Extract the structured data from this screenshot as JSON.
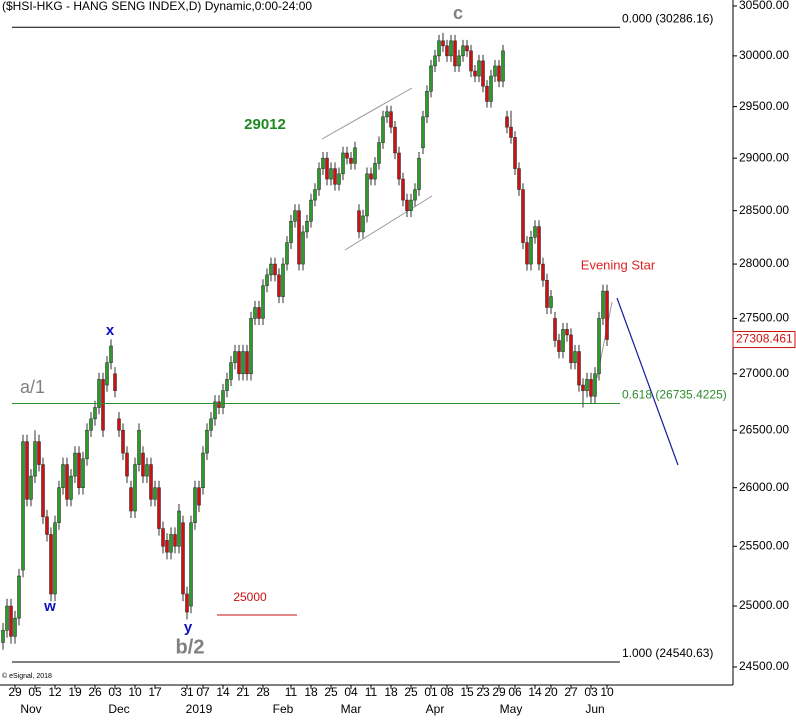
{
  "chart_data": {
    "type": "candlestick",
    "title": "($HSI-HKG - HANG SENG INDEX,D) Dynamic,0:00-24:00",
    "credit": "© eSignal, 2018",
    "log_scale": true,
    "up_color": "#2e9a2e",
    "down_color": "#cc1111",
    "ylim": [
      24500,
      30500
    ],
    "yticks": [
      {
        "value": 24500,
        "label": "24500.00"
      },
      {
        "value": 25000,
        "label": "25000.00"
      },
      {
        "value": 25500,
        "label": "25500.00"
      },
      {
        "value": 26000,
        "label": "26000.00"
      },
      {
        "value": 26500,
        "label": "26500.00"
      },
      {
        "value": 27000,
        "label": "27000.00"
      },
      {
        "value": 27500,
        "label": "27500.00"
      },
      {
        "value": 28000,
        "label": "28000.00"
      },
      {
        "value": 28500,
        "label": "28500.00"
      },
      {
        "value": 29000,
        "label": "29000.00"
      },
      {
        "value": 29500,
        "label": "29500.00"
      },
      {
        "value": 30000,
        "label": "30000.00"
      },
      {
        "value": 30500,
        "label": "30500.00"
      }
    ],
    "xlim": [
      -0.75,
      181.75
    ],
    "xticks": [
      {
        "value": 3,
        "label": "29"
      },
      {
        "value": 8,
        "label": "05"
      },
      {
        "value": 13,
        "label": "12"
      },
      {
        "value": 18,
        "label": "19"
      },
      {
        "value": 23,
        "label": "26"
      },
      {
        "value": 28,
        "label": "03"
      },
      {
        "value": 33,
        "label": "10"
      },
      {
        "value": 38,
        "label": "17"
      },
      {
        "value": 46,
        "label": "31"
      },
      {
        "value": 50,
        "label": "07"
      },
      {
        "value": 55,
        "label": "14"
      },
      {
        "value": 60,
        "label": "21"
      },
      {
        "value": 65,
        "label": "28"
      },
      {
        "value": 72,
        "label": "11"
      },
      {
        "value": 77,
        "label": "18"
      },
      {
        "value": 82,
        "label": "25"
      },
      {
        "value": 87,
        "label": "04"
      },
      {
        "value": 92,
        "label": "11"
      },
      {
        "value": 97,
        "label": "18"
      },
      {
        "value": 102,
        "label": "25"
      },
      {
        "value": 107,
        "label": "01"
      },
      {
        "value": 111,
        "label": "08"
      },
      {
        "value": 116,
        "label": "15"
      },
      {
        "value": 120,
        "label": "23"
      },
      {
        "value": 124,
        "label": "29"
      },
      {
        "value": 128,
        "label": "06"
      },
      {
        "value": 133,
        "label": "14"
      },
      {
        "value": 137,
        "label": "20"
      },
      {
        "value": 142,
        "label": "27"
      },
      {
        "value": 147,
        "label": "03"
      },
      {
        "value": 151,
        "label": "10"
      }
    ],
    "months": [
      {
        "value": 7,
        "label": "Nov"
      },
      {
        "value": 29,
        "label": "Dec"
      },
      {
        "value": 49,
        "label": "2019"
      },
      {
        "value": 70,
        "label": "Feb"
      },
      {
        "value": 87,
        "label": "Mar"
      },
      {
        "value": 108,
        "label": "Apr"
      },
      {
        "value": 127,
        "label": "May"
      },
      {
        "value": 148,
        "label": "Jun"
      }
    ],
    "levels": [
      {
        "value": 30286.16,
        "label": "0.000 (30286.16)",
        "color": "#000000"
      },
      {
        "value": 26735.4225,
        "label": "0.618 (26735.4225)",
        "color": "#2e8b2e"
      },
      {
        "value": 24540.63,
        "label": "1.000 (24540.63)",
        "color": "#000000"
      }
    ],
    "last_price": 27308.461,
    "annotations": {
      "c": "c",
      "a1": "a/1",
      "x": "x",
      "w": "w",
      "y": "y",
      "b2": "b/2",
      "target": "29012",
      "low": "25000",
      "pattern": "Evening Star"
    },
    "candles": [
      [
        24700,
        24860,
        24640,
        24800
      ],
      [
        24800,
        25060,
        24740,
        25000
      ],
      [
        25000,
        25060,
        24690,
        24750
      ],
      [
        24750,
        24960,
        24690,
        24900
      ],
      [
        24900,
        25310,
        24840,
        25250
      ],
      [
        25300,
        26460,
        25240,
        26400
      ],
      [
        26400,
        26460,
        25840,
        25900
      ],
      [
        25900,
        26160,
        25840,
        26100
      ],
      [
        26100,
        26500,
        26040,
        26400
      ],
      [
        26400,
        26460,
        26140,
        26200
      ],
      [
        26200,
        26260,
        25690,
        25750
      ],
      [
        25750,
        25810,
        25540,
        25600
      ],
      [
        25600,
        25660,
        25040,
        25100
      ],
      [
        25100,
        25760,
        25040,
        25700
      ],
      [
        25700,
        26060,
        25640,
        26000
      ],
      [
        26000,
        26260,
        25940,
        26200
      ],
      [
        26200,
        26260,
        25840,
        25900
      ],
      [
        25900,
        26160,
        25840,
        26100
      ],
      [
        26100,
        26360,
        26040,
        26300
      ],
      [
        26300,
        26360,
        25940,
        26000
      ],
      [
        26000,
        26310,
        25940,
        26250
      ],
      [
        26250,
        26560,
        26190,
        26500
      ],
      [
        26500,
        26660,
        26440,
        26600
      ],
      [
        26600,
        26760,
        26540,
        26700
      ],
      [
        26700,
        27010,
        26640,
        26950
      ],
      [
        26950,
        27010,
        26440,
        26500
      ],
      [
        26900,
        27160,
        26840,
        27100
      ],
      [
        27100,
        27310,
        27040,
        27250
      ],
      [
        27000,
        27060,
        26790,
        26850
      ],
      [
        26600,
        26660,
        26440,
        26500
      ],
      [
        26500,
        26560,
        26240,
        26300
      ],
      [
        26300,
        26360,
        26040,
        26100
      ],
      [
        26000,
        26060,
        25740,
        25800
      ],
      [
        25800,
        26260,
        25740,
        26200
      ],
      [
        26200,
        26560,
        26140,
        26500
      ],
      [
        26300,
        26360,
        26040,
        26100
      ],
      [
        26100,
        26260,
        26040,
        26200
      ],
      [
        26200,
        26260,
        25840,
        25900
      ],
      [
        25900,
        26060,
        25840,
        26000
      ],
      [
        26000,
        26060,
        25590,
        25650
      ],
      [
        25650,
        25710,
        25440,
        25500
      ],
      [
        25550,
        25610,
        25390,
        25450
      ],
      [
        25450,
        25660,
        25390,
        25600
      ],
      [
        25600,
        25660,
        25440,
        25500
      ],
      [
        25500,
        25860,
        25440,
        25800
      ],
      [
        25700,
        25760,
        25040,
        25100
      ],
      [
        25100,
        25160,
        24890,
        24950
      ],
      [
        25000,
        25760,
        24940,
        25700
      ],
      [
        25700,
        26060,
        25640,
        26000
      ],
      [
        26000,
        26060,
        25790,
        25850
      ],
      [
        26000,
        26360,
        25940,
        26300
      ],
      [
        26300,
        26560,
        26240,
        26500
      ],
      [
        26500,
        26660,
        26440,
        26600
      ],
      [
        26600,
        26810,
        26540,
        26750
      ],
      [
        26750,
        26810,
        26640,
        26700
      ],
      [
        26700,
        26910,
        26640,
        26850
      ],
      [
        26850,
        27010,
        26790,
        26950
      ],
      [
        26950,
        27160,
        26890,
        27100
      ],
      [
        27100,
        27260,
        27040,
        27200
      ],
      [
        27200,
        27260,
        26940,
        27000
      ],
      [
        27000,
        27260,
        26940,
        27200
      ],
      [
        27200,
        27260,
        26940,
        27000
      ],
      [
        27000,
        27560,
        26940,
        27500
      ],
      [
        27500,
        27660,
        27440,
        27600
      ],
      [
        27600,
        27660,
        27440,
        27500
      ],
      [
        27500,
        27860,
        27440,
        27800
      ],
      [
        27800,
        27960,
        27740,
        27900
      ],
      [
        27900,
        28060,
        27840,
        28000
      ],
      [
        28000,
        28060,
        27840,
        27900
      ],
      [
        27900,
        27960,
        27640,
        27700
      ],
      [
        27700,
        28060,
        27640,
        28000
      ],
      [
        28000,
        28260,
        27940,
        28200
      ],
      [
        28200,
        28460,
        28140,
        28400
      ],
      [
        28400,
        28560,
        28340,
        28500
      ],
      [
        28500,
        28560,
        27940,
        28000
      ],
      [
        28000,
        28360,
        27940,
        28300
      ],
      [
        28300,
        28460,
        28240,
        28400
      ],
      [
        28400,
        28660,
        28340,
        28600
      ],
      [
        28600,
        28760,
        28540,
        28700
      ],
      [
        28700,
        28960,
        28640,
        28900
      ],
      [
        28900,
        29060,
        28840,
        29000
      ],
      [
        29000,
        29060,
        28740,
        28800
      ],
      [
        28800,
        28960,
        28740,
        28900
      ],
      [
        28900,
        28960,
        28690,
        28750
      ],
      [
        28750,
        28910,
        28690,
        28850
      ],
      [
        28850,
        29110,
        28790,
        29050
      ],
      [
        29050,
        29110,
        28940,
        29000
      ],
      [
        29000,
        29060,
        28890,
        28950
      ],
      [
        28950,
        29160,
        28890,
        29100
      ],
      [
        28500,
        28560,
        28240,
        28300
      ],
      [
        28300,
        28510,
        28240,
        28450
      ],
      [
        28450,
        28910,
        28390,
        28850
      ],
      [
        28850,
        28910,
        28740,
        28800
      ],
      [
        28800,
        29010,
        28740,
        28950
      ],
      [
        28950,
        29210,
        28890,
        29150
      ],
      [
        29150,
        29460,
        29090,
        29400
      ],
      [
        29400,
        29510,
        29340,
        29450
      ],
      [
        29450,
        29510,
        29240,
        29300
      ],
      [
        29300,
        29360,
        28990,
        29050
      ],
      [
        29050,
        29110,
        28740,
        28800
      ],
      [
        28800,
        28860,
        28540,
        28600
      ],
      [
        28600,
        28660,
        28440,
        28500
      ],
      [
        28500,
        28660,
        28440,
        28600
      ],
      [
        28600,
        28760,
        28540,
        28700
      ],
      [
        28700,
        29060,
        28640,
        29000
      ],
      [
        29100,
        29460,
        29040,
        29400
      ],
      [
        29400,
        29710,
        29340,
        29650
      ],
      [
        29650,
        29960,
        29590,
        29900
      ],
      [
        29900,
        30060,
        29840,
        30000
      ],
      [
        30000,
        30210,
        29940,
        30150
      ],
      [
        30150,
        30230,
        30040,
        30100
      ],
      [
        30100,
        30160,
        29940,
        30000
      ],
      [
        30000,
        30210,
        29940,
        30150
      ],
      [
        30150,
        30210,
        29840,
        29900
      ],
      [
        29900,
        30060,
        29840,
        30000
      ],
      [
        30000,
        30160,
        29940,
        30100
      ],
      [
        30100,
        30160,
        29990,
        30050
      ],
      [
        30050,
        30110,
        29790,
        29850
      ],
      [
        29850,
        29910,
        29740,
        29800
      ],
      [
        29800,
        30010,
        29740,
        29950
      ],
      [
        29950,
        30010,
        29640,
        29700
      ],
      [
        29700,
        29760,
        29490,
        29550
      ],
      [
        29550,
        29860,
        29490,
        29800
      ],
      [
        29800,
        29960,
        29740,
        29900
      ],
      [
        29900,
        29960,
        29690,
        29750
      ],
      [
        29750,
        30110,
        29690,
        30050
      ],
      [
        29400,
        29460,
        29240,
        29300
      ],
      [
        29300,
        29460,
        29140,
        29200
      ],
      [
        29200,
        29260,
        28840,
        28900
      ],
      [
        28900,
        28960,
        28640,
        28700
      ],
      [
        28700,
        28760,
        28140,
        28200
      ],
      [
        28200,
        28260,
        27940,
        28000
      ],
      [
        28000,
        28310,
        27940,
        28250
      ],
      [
        28250,
        28410,
        28190,
        28350
      ],
      [
        28350,
        28410,
        27940,
        28000
      ],
      [
        28000,
        28060,
        27790,
        27850
      ],
      [
        27850,
        27910,
        27540,
        27600
      ],
      [
        27600,
        27760,
        27540,
        27700
      ],
      [
        27500,
        27560,
        27240,
        27300
      ],
      [
        27300,
        27360,
        27140,
        27200
      ],
      [
        27200,
        27460,
        27140,
        27400
      ],
      [
        27400,
        27460,
        27290,
        27350
      ],
      [
        27350,
        27410,
        27040,
        27100
      ],
      [
        27100,
        27260,
        27040,
        27200
      ],
      [
        27200,
        27260,
        26840,
        26900
      ],
      [
        26900,
        26960,
        26700,
        26850
      ],
      [
        26850,
        27010,
        26790,
        26950
      ],
      [
        26950,
        27010,
        26740,
        26800
      ],
      [
        26800,
        27060,
        26740,
        27000
      ],
      [
        27000,
        27560,
        26940,
        27500
      ],
      [
        27500,
        27810,
        27440,
        27750
      ],
      [
        27750,
        27810,
        27250,
        27308.461
      ]
    ]
  }
}
